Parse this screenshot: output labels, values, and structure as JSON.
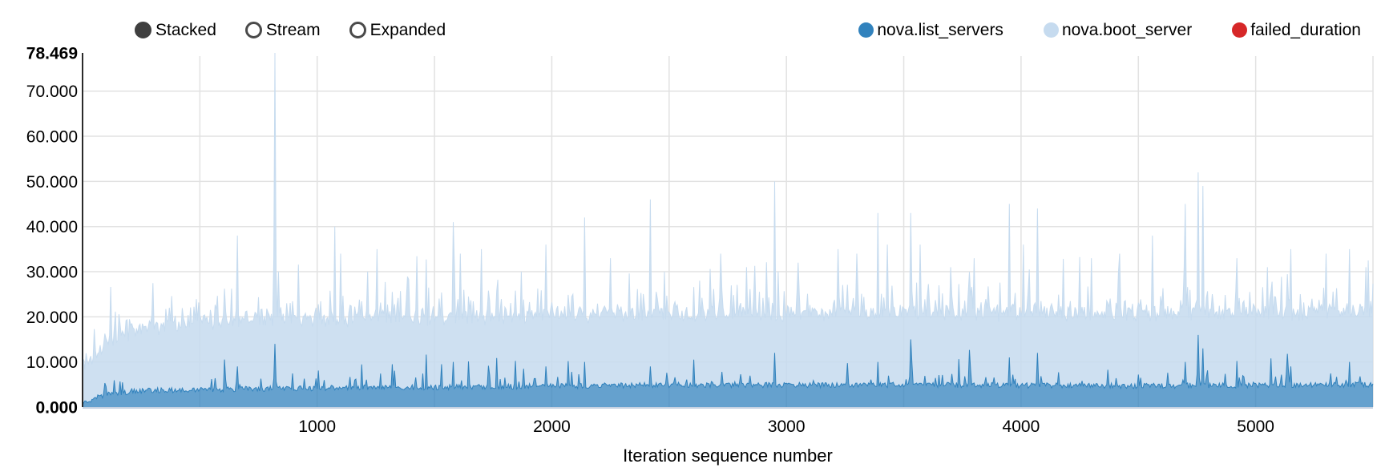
{
  "controls": {
    "items": [
      {
        "label": "Stacked",
        "selected": true
      },
      {
        "label": "Stream",
        "selected": false
      },
      {
        "label": "Expanded",
        "selected": false
      }
    ]
  },
  "legend": {
    "series": [
      {
        "name": "nova.list_servers",
        "color": "#3182bd"
      },
      {
        "name": "nova.boot_server",
        "color": "#c6dbef"
      },
      {
        "name": "failed_duration",
        "color": "#d62728"
      }
    ]
  },
  "chart_data": {
    "type": "area",
    "mode": "stacked",
    "title": "",
    "xlabel": "Iteration sequence number",
    "ylabel": "",
    "xlim": [
      0,
      5500
    ],
    "ylim": [
      0,
      78.469
    ],
    "approx_iterations": 5500,
    "max_total_duration": 78.469,
    "grid": true,
    "x_gridline_step": 500,
    "x_ticks": [
      {
        "value": 1000,
        "label": "1000"
      },
      {
        "value": 2000,
        "label": "2000"
      },
      {
        "value": 3000,
        "label": "3000"
      },
      {
        "value": 4000,
        "label": "4000"
      },
      {
        "value": 5000,
        "label": "5000"
      }
    ],
    "y_ticks": [
      {
        "value": 0,
        "label": "0.000",
        "bold": true
      },
      {
        "value": 10,
        "label": "10.000",
        "bold": false
      },
      {
        "value": 20,
        "label": "20.000",
        "bold": false
      },
      {
        "value": 30,
        "label": "30.000",
        "bold": false
      },
      {
        "value": 40,
        "label": "40.000",
        "bold": false
      },
      {
        "value": 50,
        "label": "50.000",
        "bold": false
      },
      {
        "value": 60,
        "label": "60.000",
        "bold": false
      },
      {
        "value": 70,
        "label": "70.000",
        "bold": false
      },
      {
        "value": 78.469,
        "label": "78.469",
        "bold": true
      }
    ],
    "series": [
      {
        "name": "nova.list_servers",
        "color": "#3182bd",
        "fill_opacity": 0.75,
        "baseline_anchors": [
          [
            0,
            0.6
          ],
          [
            60,
            2.2
          ],
          [
            150,
            3.2
          ],
          [
            300,
            3.7
          ],
          [
            800,
            4.1
          ],
          [
            1500,
            4.4
          ],
          [
            2500,
            4.9
          ],
          [
            3500,
            4.9
          ],
          [
            4500,
            4.7
          ],
          [
            5500,
            5.0
          ]
        ],
        "noise_amp": 0.6,
        "spikes": [
          [
            660,
            9
          ],
          [
            820,
            14
          ],
          [
            1580,
            10
          ],
          [
            1975,
            9
          ],
          [
            2140,
            10
          ],
          [
            2420,
            9
          ],
          [
            2950,
            12
          ],
          [
            3390,
            10
          ],
          [
            3530,
            15
          ],
          [
            3950,
            11
          ],
          [
            4070,
            12
          ],
          [
            4700,
            10
          ],
          [
            4755,
            16
          ],
          [
            4775,
            13
          ],
          [
            5150,
            9
          ],
          [
            5400,
            10
          ]
        ]
      },
      {
        "name": "nova.boot_server",
        "color": "#c6dbef",
        "fill_opacity": 0.85,
        "baseline_anchors": [
          [
            0,
            8
          ],
          [
            100,
            11
          ],
          [
            200,
            13
          ],
          [
            350,
            14.5
          ],
          [
            600,
            15.3
          ],
          [
            1000,
            15.3
          ],
          [
            2000,
            15.6
          ],
          [
            3000,
            15.8
          ],
          [
            4000,
            16.0
          ],
          [
            5500,
            16.2
          ]
        ],
        "noise_amp": 1.5,
        "stacks_on": "nova.list_servers"
      },
      {
        "name": "failed_duration",
        "color": "#d62728",
        "fill_opacity": 0.75,
        "baseline_anchors": [
          [
            0,
            0
          ],
          [
            5500,
            0
          ]
        ],
        "noise_amp": 0,
        "values_all_zero": true
      }
    ],
    "total_spikes": [
      [
        660,
        38
      ],
      [
        820,
        78.469
      ],
      [
        1075,
        40
      ],
      [
        1100,
        34
      ],
      [
        1255,
        35
      ],
      [
        1580,
        41
      ],
      [
        1610,
        34
      ],
      [
        1700,
        35
      ],
      [
        1870,
        30
      ],
      [
        1975,
        36
      ],
      [
        2140,
        42
      ],
      [
        2250,
        33
      ],
      [
        2420,
        46
      ],
      [
        2480,
        30
      ],
      [
        2630,
        28
      ],
      [
        2720,
        34
      ],
      [
        2830,
        31
      ],
      [
        2950,
        50
      ],
      [
        3050,
        32
      ],
      [
        3220,
        35
      ],
      [
        3300,
        34
      ],
      [
        3390,
        43
      ],
      [
        3430,
        36
      ],
      [
        3530,
        43
      ],
      [
        3570,
        36
      ],
      [
        3700,
        31
      ],
      [
        3800,
        33
      ],
      [
        3950,
        45
      ],
      [
        4010,
        36
      ],
      [
        4070,
        44
      ],
      [
        4180,
        31
      ],
      [
        4300,
        33
      ],
      [
        4420,
        34
      ],
      [
        4560,
        38
      ],
      [
        4700,
        45
      ],
      [
        4755,
        52
      ],
      [
        4775,
        49
      ],
      [
        4920,
        33
      ],
      [
        5050,
        31
      ],
      [
        5150,
        35
      ],
      [
        5300,
        34
      ],
      [
        5400,
        35
      ],
      [
        5470,
        31
      ]
    ],
    "colors": {
      "axis_line": "#2b2b2b",
      "gridline": "#e2e2e2",
      "bottom_line": "#c6d2e2"
    }
  }
}
